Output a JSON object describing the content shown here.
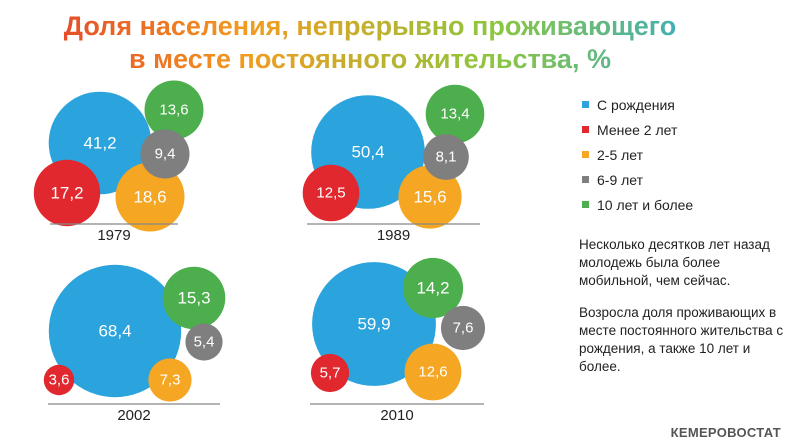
{
  "title": {
    "line1": "Доля населения, непрерывно проживающего",
    "line2": "в месте постоянного жительства, %",
    "gradient": [
      "#e0342f",
      "#f29b1e",
      "#8dc63f",
      "#2aa8d8"
    ]
  },
  "chart_data": {
    "type": "bubble",
    "categories": [
      "С рождения",
      "Менее 2 лет",
      "2-5 лет",
      "6-9 лет",
      "10 лет и более"
    ],
    "colors": {
      "С рождения": "#2ba3dc",
      "Менее 2 лет": "#e0282e",
      "2-5 лет": "#f5a623",
      "6-9 лет": "#7f7f7f",
      "10 лет и более": "#4cae4c"
    },
    "panels": [
      {
        "year": "1979",
        "values": {
          "С рождения": "41,2",
          "Менее 2 лет": "17,2",
          "2-5 лет": "18,6",
          "6-9 лет": "9,4",
          "10 лет и более": "13,6"
        }
      },
      {
        "year": "1989",
        "values": {
          "С рождения": "50,4",
          "Менее 2 лет": "12,5",
          "2-5 лет": "15,6",
          "6-9 лет": "8,1",
          "10 лет и более": "13,4"
        }
      },
      {
        "year": "2002",
        "values": {
          "С рождения": "68,4",
          "Менее 2 лет": "3,6",
          "2-5 лет": "7,3",
          "6-9 лет": "5,4",
          "10 лет и более": "15,3"
        }
      },
      {
        "year": "2010",
        "values": {
          "С рождения": "59,9",
          "Менее 2 лет": "5,7",
          "2-5 лет": "12,6",
          "6-9 лет": "7,6",
          "10 лет и более": "14,2"
        }
      }
    ]
  },
  "legend": [
    {
      "label": "С рождения",
      "color": "#2ba3dc"
    },
    {
      "label": "Менее 2 лет",
      "color": "#e0282e"
    },
    {
      "label": "2-5 лет",
      "color": "#f5a623"
    },
    {
      "label": "6-9 лет",
      "color": "#7f7f7f"
    },
    {
      "label": "10 лет и более",
      "color": "#4cae4c"
    }
  ],
  "notes": [
    "Несколько десятков лет назад молодежь была более мобильной, чем сейчас.",
    "Возросла доля проживающих в месте постоянного жительства с рождения, а также 10 лет и более."
  ],
  "source": "КЕМЕРОВОСТАТ"
}
